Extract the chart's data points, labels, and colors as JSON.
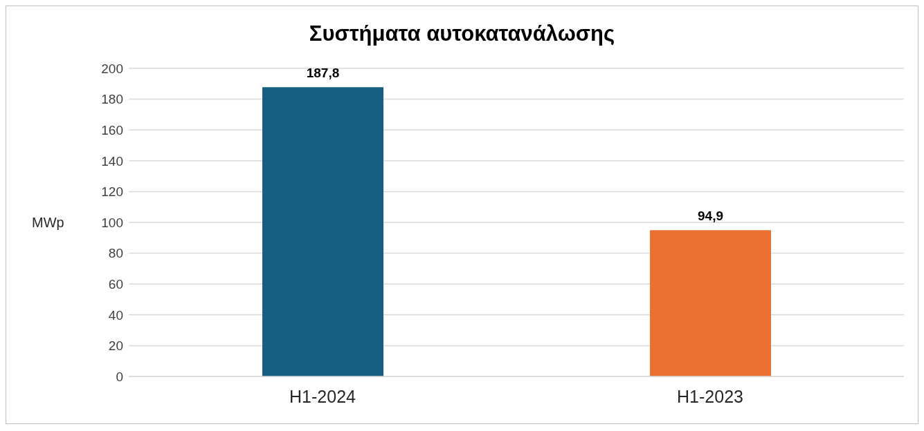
{
  "chart_data": {
    "type": "bar",
    "title": "Συστήματα αυτοκατανάλωσης",
    "ylabel": "MWp",
    "categories": [
      "H1-2024",
      "H1-2023"
    ],
    "values": [
      187.8,
      94.9
    ],
    "colors": [
      "#175f82",
      "#e97132"
    ],
    "value_labels": [
      "187,8",
      "94,9"
    ],
    "ylim": [
      0,
      200
    ],
    "yticks": [
      0,
      20,
      40,
      60,
      80,
      100,
      120,
      140,
      160,
      180,
      200
    ],
    "grid": "y",
    "legend": false
  }
}
